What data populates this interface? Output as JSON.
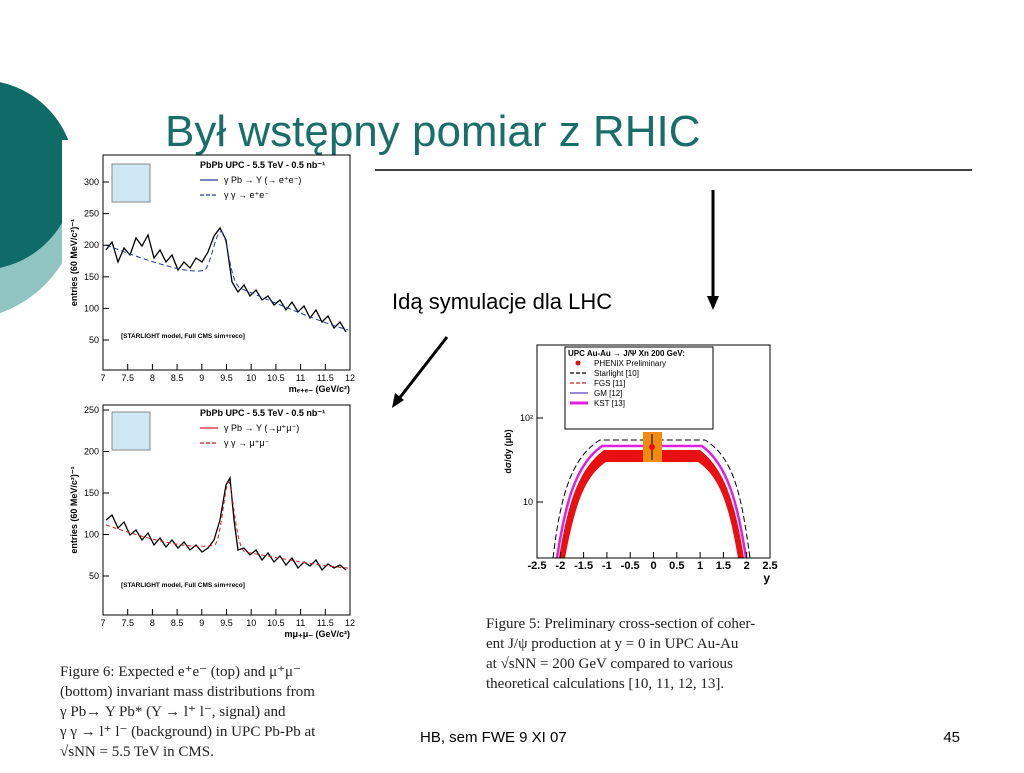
{
  "title": "Był wstępny pomiar z RHIC",
  "annotation": "Idą symulacje dla LHC",
  "footer": {
    "text": "HB, sem FWE 9 XI 07",
    "page": "45"
  },
  "plots": [
    {
      "title": "PbPb UPC - 5.5 TeV - 0.5 nb⁻¹",
      "legend": [
        {
          "label": "γ Pb → Υ (→ e⁺e⁻)",
          "color": "#2a3aa0",
          "style": "solid"
        },
        {
          "label": "γ γ → e⁺e⁻",
          "color": "#2a3aa0",
          "style": "dashed"
        }
      ],
      "note": "[STARLIGHT model, Full CMS sim+reco]",
      "ylabel": "entries (60 MeV/c²)⁻¹",
      "xlabel": "mₑ₊ₑ₋ (GeV/c²)",
      "yticks": [
        50,
        100,
        150,
        200,
        250,
        300
      ],
      "xticks": [
        7,
        7.5,
        8,
        8.5,
        9,
        9.5,
        10,
        10.5,
        11,
        11.5,
        12
      ]
    },
    {
      "title": "PbPb UPC - 5.5 TeV - 0.5 nb⁻¹",
      "legend": [
        {
          "label": "γ Pb → Υ (→μ⁺μ⁻)",
          "color": "#d02020",
          "style": "solid"
        },
        {
          "label": "γ γ → μ⁺μ⁻",
          "color": "#d02020",
          "style": "dashed"
        }
      ],
      "note": "[STARLIGHT model, Full CMS sim+reco]",
      "ylabel": "entries (60 MeV/c²)⁻¹",
      "xlabel": "mμ₊μ₋ (GeV/c²)",
      "yticks": [
        50,
        100,
        150,
        200,
        250
      ],
      "xticks": [
        7,
        7.5,
        8,
        8.5,
        9,
        9.5,
        10,
        10.5,
        11,
        11.5,
        12
      ]
    },
    {
      "title": "UPC Au-Au → J/Ψ Xn  200 GeV:",
      "legend": [
        {
          "label": "PHENIX Preliminary",
          "color": "#e01010",
          "style": "dot"
        },
        {
          "label": "Starlight [10]",
          "color": "#000000",
          "style": "dashed"
        },
        {
          "label": "FGS [11]",
          "color": "#d02020",
          "style": "dashed"
        },
        {
          "label": "GM [12]",
          "color": "#6040c0",
          "style": "solid"
        },
        {
          "label": "KST [13]",
          "color": "#e020e0",
          "style": "thick"
        }
      ],
      "ylabel": "dσ/dy (μb)",
      "xlabel": "y",
      "yticks": [
        "10",
        "10²"
      ],
      "xticks": [
        -2.5,
        -2,
        -1.5,
        -1,
        -0.5,
        0,
        0.5,
        1,
        1.5,
        2,
        2.5
      ]
    }
  ],
  "captions": [
    [
      "Figure 6:  Expected e⁺e⁻ (top) and μ⁺μ⁻",
      "(bottom) invariant mass distributions from",
      "γ Pb→  Υ Pb* (Υ  →  l⁺ l⁻,  signal) and",
      "γ γ → l⁺ l⁻ (background) in UPC Pb-Pb at",
      "√sNN = 5.5 TeV in CMS."
    ],
    [
      "Figure 5:  Preliminary cross-section of coher-",
      "ent J/ψ production at y = 0 in UPC Au-Au",
      "at √sNN = 200 GeV compared to various",
      "theoretical calculations [10, 11, 12, 13]."
    ]
  ]
}
